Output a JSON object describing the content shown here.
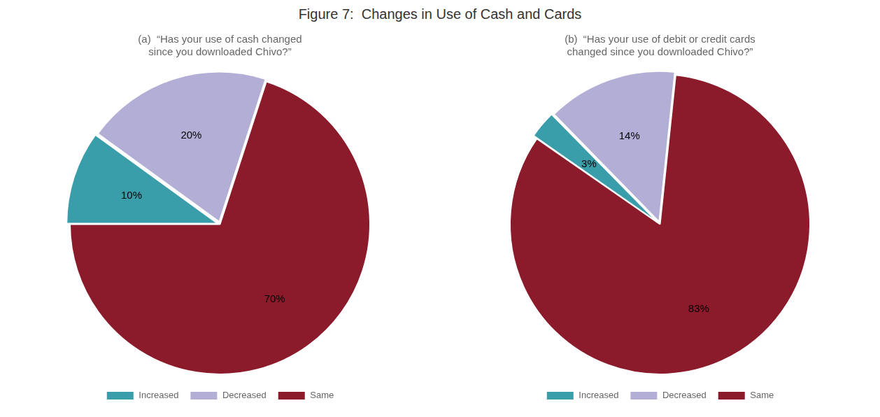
{
  "title": "Figure 7:  Changes in Use of Cash and Cards",
  "chart_data": [
    {
      "type": "pie",
      "title": "(a)  “Has your use of cash changed\nsince you downloaded Chivo?”",
      "categories": [
        "Increased",
        "Decreased",
        "Same"
      ],
      "values": [
        10,
        20,
        70
      ],
      "value_labels": [
        "10%",
        "20%",
        "70%"
      ],
      "colors": [
        "#3a9daa",
        "#b3aed6",
        "#8b1a2a"
      ],
      "data_labels": true,
      "legend": "bottom"
    },
    {
      "type": "pie",
      "title": "(b)  “Has your use of debit or credit cards\nchanged since you downloaded Chivo?”",
      "categories": [
        "Increased",
        "Decreased",
        "Same"
      ],
      "values": [
        3,
        14,
        83
      ],
      "value_labels": [
        "3%",
        "14%",
        "83%"
      ],
      "colors": [
        "#3a9daa",
        "#b3aed6",
        "#8b1a2a"
      ],
      "data_labels": true,
      "legend": "bottom"
    }
  ]
}
